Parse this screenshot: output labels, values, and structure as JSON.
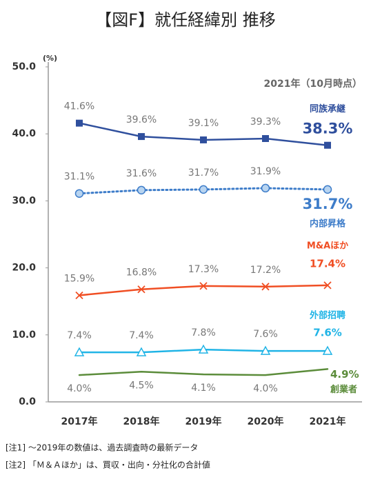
{
  "chart_data": {
    "type": "line",
    "title": "【図F】就任経緯別 推移",
    "y_unit": "(%)",
    "annotation": "2021年（10月時点）",
    "categories": [
      "2017年",
      "2018年",
      "2019年",
      "2020年",
      "2021年"
    ],
    "ylim": [
      0,
      50
    ],
    "yticks": [
      {
        "value": 0,
        "label": "0.0"
      },
      {
        "value": 10,
        "label": "10.0"
      },
      {
        "value": 20,
        "label": "20.0"
      },
      {
        "value": 30,
        "label": "30.0"
      },
      {
        "value": 40,
        "label": "40.0"
      },
      {
        "value": 50,
        "label": "50.0"
      }
    ],
    "grid": false,
    "series": [
      {
        "name": "同族承継",
        "color": "#2f4f9d",
        "marker": "square",
        "line_style": "solid",
        "values": [
          41.6,
          39.6,
          39.1,
          39.3,
          38.3
        ],
        "value_labels": [
          "41.6%",
          "39.6%",
          "39.1%",
          "39.3%",
          "38.3%"
        ]
      },
      {
        "name": "内部昇格",
        "color": "#3d7cc9",
        "marker_fill": "#b8d4f0",
        "marker": "circle",
        "line_style": "dotted",
        "values": [
          31.1,
          31.6,
          31.7,
          31.9,
          31.7
        ],
        "value_labels": [
          "31.1%",
          "31.6%",
          "31.7%",
          "31.9%",
          "31.7%"
        ]
      },
      {
        "name": "M&Aほか",
        "color": "#f04e23",
        "marker": "x",
        "line_style": "solid",
        "values": [
          15.9,
          16.8,
          17.3,
          17.2,
          17.4
        ],
        "value_labels": [
          "15.9%",
          "16.8%",
          "17.3%",
          "17.2%",
          "17.4%"
        ]
      },
      {
        "name": "外部招聘",
        "color": "#20b4e6",
        "marker": "triangle",
        "line_style": "solid",
        "values": [
          7.4,
          7.4,
          7.8,
          7.6,
          7.6
        ],
        "value_labels": [
          "7.4%",
          "7.4%",
          "7.8%",
          "7.6%",
          "7.6%"
        ]
      },
      {
        "name": "創業者",
        "color": "#5b8c3a",
        "marker": "none",
        "line_style": "solid",
        "values": [
          4.0,
          4.5,
          4.1,
          4.0,
          4.9
        ],
        "value_labels": [
          "4.0%",
          "4.5%",
          "4.1%",
          "4.0%",
          "4.9%"
        ]
      }
    ],
    "notes": [
      "[注1] ～2019年の数値は、過去調査時の最新データ",
      "[注2] 「Ｍ＆Ａほか」は、買収・出向・分社化の合計値"
    ]
  }
}
